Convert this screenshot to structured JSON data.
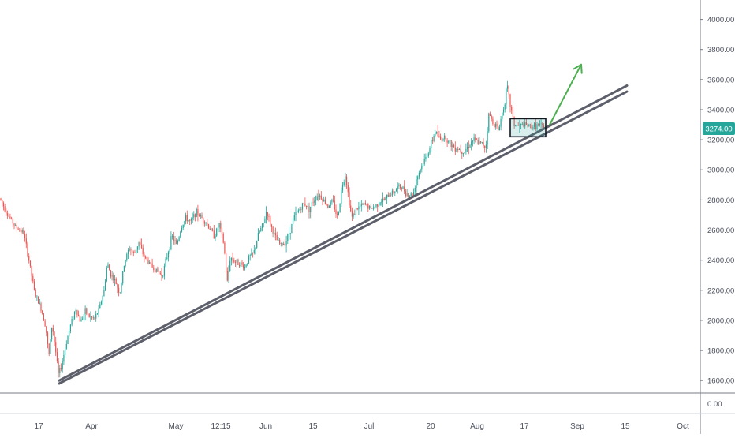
{
  "colors": {
    "up": "#26a69a",
    "down": "#ef5350",
    "trendline": "#5d606b",
    "arrow": "#4caf50",
    "box": "#131722",
    "axis_text": "#4a4f5c",
    "price_badge": "#26a69a",
    "grid_border": "#787b86"
  },
  "chart_data": {
    "type": "candlestick",
    "title": "",
    "xlabel": "",
    "ylabel": "",
    "ylim": [
      1500,
      4150
    ],
    "y_ticks": [
      "4000.00",
      "3800.00",
      "3600.00",
      "3400.00",
      "3200.00",
      "3000.00",
      "2800.00",
      "2600.00",
      "2400.00",
      "2200.00",
      "2000.00",
      "1800.00",
      "1600.00"
    ],
    "y_tick_values": [
      4000,
      3800,
      3600,
      3400,
      3200,
      3000,
      2800,
      2600,
      2400,
      2200,
      2000,
      1800,
      1600
    ],
    "x_ticks": [
      "17",
      "Apr",
      "May",
      "12:15",
      "Jun",
      "15",
      "Jul",
      "20",
      "Aug",
      "17",
      "Sep",
      "15",
      "Oct"
    ],
    "current_price": 3274.0,
    "current_price_label": "3274.00",
    "price_path": [
      [
        0,
        2810
      ],
      [
        10,
        2700
      ],
      [
        20,
        2620
      ],
      [
        30,
        2580
      ],
      [
        36,
        2420
      ],
      [
        44,
        2180
      ],
      [
        52,
        2080
      ],
      [
        58,
        1960
      ],
      [
        62,
        1760
      ],
      [
        66,
        1980
      ],
      [
        70,
        1820
      ],
      [
        74,
        1640
      ],
      [
        78,
        1700
      ],
      [
        84,
        1850
      ],
      [
        90,
        1980
      ],
      [
        96,
        2080
      ],
      [
        102,
        1990
      ],
      [
        108,
        2060
      ],
      [
        114,
        2020
      ],
      [
        120,
        2010
      ],
      [
        126,
        2080
      ],
      [
        132,
        2200
      ],
      [
        136,
        2380
      ],
      [
        140,
        2310
      ],
      [
        146,
        2260
      ],
      [
        152,
        2180
      ],
      [
        158,
        2390
      ],
      [
        164,
        2480
      ],
      [
        170,
        2440
      ],
      [
        176,
        2520
      ],
      [
        182,
        2430
      ],
      [
        188,
        2390
      ],
      [
        194,
        2350
      ],
      [
        200,
        2320
      ],
      [
        206,
        2300
      ],
      [
        212,
        2430
      ],
      [
        218,
        2560
      ],
      [
        224,
        2500
      ],
      [
        230,
        2620
      ],
      [
        236,
        2680
      ],
      [
        242,
        2650
      ],
      [
        248,
        2720
      ],
      [
        254,
        2690
      ],
      [
        260,
        2660
      ],
      [
        266,
        2610
      ],
      [
        272,
        2560
      ],
      [
        278,
        2640
      ],
      [
        284,
        2500
      ],
      [
        288,
        2240
      ],
      [
        292,
        2420
      ],
      [
        298,
        2390
      ],
      [
        304,
        2380
      ],
      [
        310,
        2350
      ],
      [
        316,
        2420
      ],
      [
        322,
        2450
      ],
      [
        328,
        2580
      ],
      [
        334,
        2640
      ],
      [
        338,
        2730
      ],
      [
        344,
        2620
      ],
      [
        350,
        2540
      ],
      [
        356,
        2500
      ],
      [
        362,
        2520
      ],
      [
        368,
        2600
      ],
      [
        374,
        2700
      ],
      [
        380,
        2740
      ],
      [
        386,
        2780
      ],
      [
        392,
        2740
      ],
      [
        398,
        2800
      ],
      [
        404,
        2840
      ],
      [
        410,
        2800
      ],
      [
        416,
        2760
      ],
      [
        422,
        2790
      ],
      [
        428,
        2680
      ],
      [
        434,
        2900
      ],
      [
        438,
        2970
      ],
      [
        442,
        2820
      ],
      [
        446,
        2680
      ],
      [
        452,
        2740
      ],
      [
        458,
        2760
      ],
      [
        464,
        2770
      ],
      [
        470,
        2740
      ],
      [
        476,
        2760
      ],
      [
        482,
        2790
      ],
      [
        488,
        2800
      ],
      [
        494,
        2840
      ],
      [
        500,
        2860
      ],
      [
        506,
        2890
      ],
      [
        512,
        2870
      ],
      [
        518,
        2830
      ],
      [
        524,
        2840
      ],
      [
        528,
        2940
      ],
      [
        534,
        3020
      ],
      [
        540,
        3080
      ],
      [
        546,
        3160
      ],
      [
        552,
        3260
      ],
      [
        558,
        3200
      ],
      [
        564,
        3220
      ],
      [
        570,
        3180
      ],
      [
        576,
        3150
      ],
      [
        582,
        3140
      ],
      [
        588,
        3120
      ],
      [
        594,
        3160
      ],
      [
        600,
        3200
      ],
      [
        606,
        3180
      ],
      [
        612,
        3170
      ],
      [
        616,
        3150
      ],
      [
        620,
        3380
      ],
      [
        624,
        3320
      ],
      [
        628,
        3300
      ],
      [
        632,
        3260
      ],
      [
        636,
        3360
      ],
      [
        640,
        3450
      ],
      [
        643,
        3560
      ],
      [
        647,
        3430
      ],
      [
        652,
        3300
      ],
      [
        658,
        3290
      ],
      [
        664,
        3300
      ],
      [
        670,
        3290
      ],
      [
        676,
        3290
      ],
      [
        682,
        3295
      ],
      [
        688,
        3285
      ],
      [
        690,
        3274
      ]
    ],
    "trendlines": [
      {
        "x1": 75,
        "y1": 1600,
        "x2": 795,
        "y2": 3560
      },
      {
        "x1": 75,
        "y1": 1580,
        "x2": 795,
        "y2": 3520
      }
    ],
    "consolidation_box": {
      "x1": 647,
      "x2": 692,
      "y_top": 3340,
      "y_bottom": 3220
    },
    "projection_arrow": {
      "x1": 697,
      "y1": 3300,
      "x2": 737,
      "y2": 3700
    }
  }
}
